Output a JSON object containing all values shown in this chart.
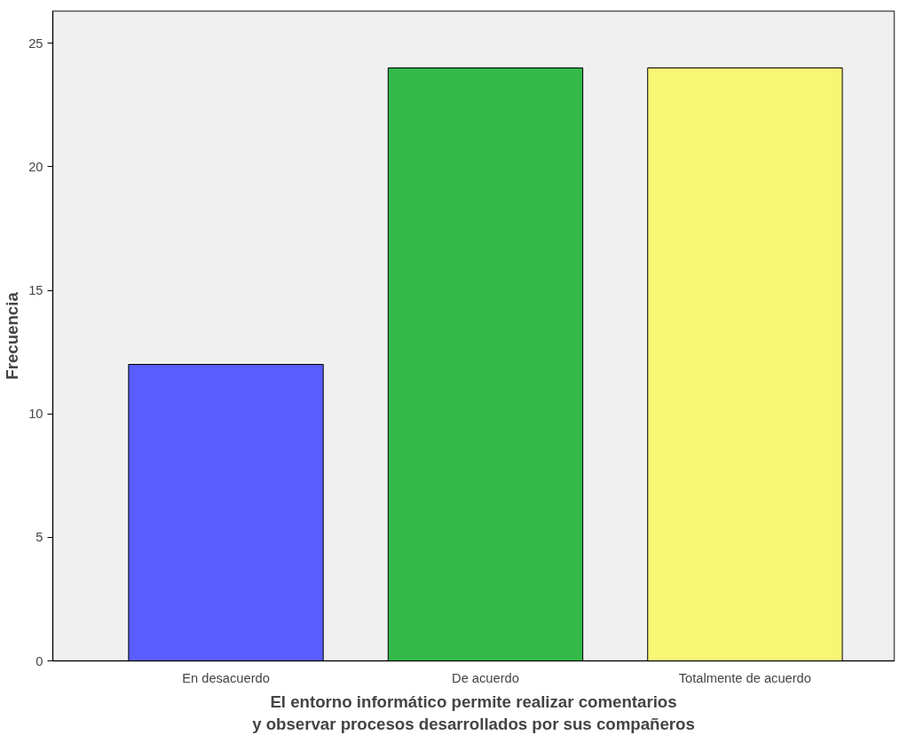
{
  "chart_data": {
    "type": "bar",
    "xlabel": "El entorno informático permite realizar comentarios y observar procesos desarrollados por sus compañeros",
    "ylabel": "Frecuencia",
    "categories": [
      "En desacuerdo",
      "De acuerdo",
      "Totalmente de acuerdo"
    ],
    "values": [
      12,
      24,
      24
    ],
    "colors": [
      "#5a5eff",
      "#33b84a",
      "#f9f575"
    ],
    "ylim": [
      0,
      26.3
    ],
    "yticks": [
      0,
      5,
      10,
      15,
      20,
      25
    ],
    "grid": false
  }
}
